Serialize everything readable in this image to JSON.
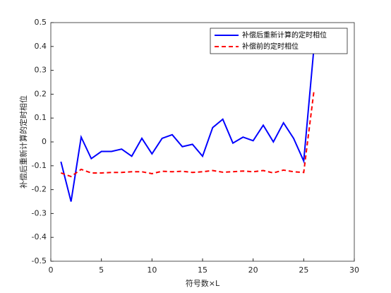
{
  "chart_data": {
    "type": "line",
    "x_label": "符号数×L",
    "y_label": "补偿后重新计算的定时相位",
    "x": [
      1,
      2,
      3,
      4,
      5,
      6,
      7,
      8,
      9,
      10,
      11,
      12,
      13,
      14,
      15,
      16,
      17,
      18,
      19,
      20,
      21,
      22,
      23,
      24,
      25,
      26
    ],
    "series": [
      {
        "name": "补偿后重新计算的定时相位",
        "color": "#0000ff",
        "dash": "solid",
        "values": [
          -0.083,
          -0.25,
          0.02,
          -0.07,
          -0.04,
          -0.04,
          -0.03,
          -0.06,
          0.015,
          -0.05,
          0.015,
          0.03,
          -0.02,
          -0.01,
          -0.06,
          0.06,
          0.095,
          -0.005,
          0.02,
          0.005,
          0.07,
          0,
          0.08,
          0.015,
          -0.08,
          0.39
        ]
      },
      {
        "name": "补偿前的定时相位",
        "color": "#ff0000",
        "dash": "dashed",
        "values": [
          -0.13,
          -0.145,
          -0.115,
          -0.13,
          -0.13,
          -0.128,
          -0.128,
          -0.125,
          -0.125,
          -0.133,
          -0.123,
          -0.125,
          -0.123,
          -0.128,
          -0.125,
          -0.12,
          -0.127,
          -0.125,
          -0.122,
          -0.125,
          -0.12,
          -0.13,
          -0.118,
          -0.125,
          -0.128,
          0.21
        ]
      }
    ],
    "xlim": [
      0,
      30
    ],
    "xticks": [
      0,
      5,
      10,
      15,
      20,
      25,
      30
    ],
    "ylim": [
      -0.5,
      0.5
    ],
    "yticks": [
      -0.5,
      -0.4,
      -0.3,
      -0.2,
      -0.1,
      0,
      0.1,
      0.2,
      0.3,
      0.4,
      0.5
    ],
    "legend": "upper right",
    "grid": false
  }
}
